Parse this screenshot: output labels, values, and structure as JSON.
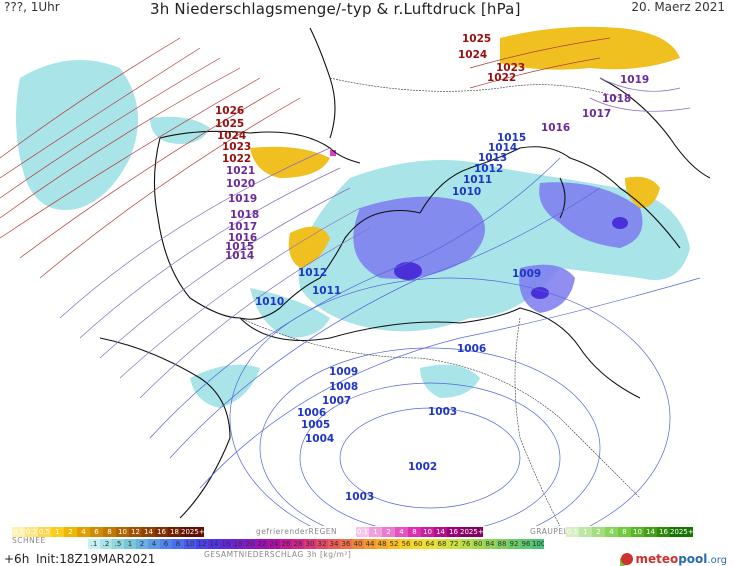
{
  "header": {
    "left": "???, 1Uhr",
    "title": "3h Niederschlagsmenge/-typ & r.Luftdruck [hPa]",
    "date": "20. Maerz 2021"
  },
  "isobar_labels": [
    {
      "value": "1025",
      "group": "hi"
    },
    {
      "value": "1024",
      "group": "hi"
    },
    {
      "value": "1023",
      "group": "hi"
    },
    {
      "value": "1022",
      "group": "hi"
    },
    {
      "value": "1026",
      "group": "hi"
    },
    {
      "value": "1025",
      "group": "hi"
    },
    {
      "value": "1024",
      "group": "hi"
    },
    {
      "value": "1023",
      "group": "hi"
    },
    {
      "value": "1022",
      "group": "hi"
    },
    {
      "value": "1021",
      "group": "mid"
    },
    {
      "value": "1020",
      "group": "mid"
    },
    {
      "value": "1019",
      "group": "mid"
    },
    {
      "value": "1018",
      "group": "mid"
    },
    {
      "value": "1017",
      "group": "mid"
    },
    {
      "value": "1016",
      "group": "mid"
    },
    {
      "value": "1015",
      "group": "mid"
    },
    {
      "value": "1014",
      "group": "mid"
    },
    {
      "value": "1019",
      "group": "mid"
    },
    {
      "value": "1018",
      "group": "mid"
    },
    {
      "value": "1017",
      "group": "mid"
    },
    {
      "value": "1016",
      "group": "mid"
    },
    {
      "value": "1015",
      "group": "lo"
    },
    {
      "value": "1014",
      "group": "lo"
    },
    {
      "value": "1013",
      "group": "lo"
    },
    {
      "value": "1012",
      "group": "lo"
    },
    {
      "value": "1011",
      "group": "lo"
    },
    {
      "value": "1010",
      "group": "lo"
    },
    {
      "value": "1012",
      "group": "lo"
    },
    {
      "value": "1011",
      "group": "lo"
    },
    {
      "value": "1010",
      "group": "lo"
    },
    {
      "value": "1009",
      "group": "lo"
    },
    {
      "value": "1006",
      "group": "lo"
    },
    {
      "value": "1009",
      "group": "lo"
    },
    {
      "value": "1008",
      "group": "lo"
    },
    {
      "value": "1007",
      "group": "lo"
    },
    {
      "value": "1006",
      "group": "lo"
    },
    {
      "value": "1005",
      "group": "lo"
    },
    {
      "value": "1004",
      "group": "lo"
    },
    {
      "value": "1003",
      "group": "lo"
    },
    {
      "value": "1002",
      "group": "lo"
    },
    {
      "value": "1003",
      "group": "lo"
    }
  ],
  "legend": {
    "schnee_label": "SCHNEE",
    "regen_label": "gefrierenderREGEN",
    "graupel_label": "GRAUPEL",
    "gesamt_label": "GESAMTNIEDERSCHLAG 3h [kg/m²]",
    "schnee_values": [
      "0.1",
      "0.2",
      "0.5",
      "1",
      "2",
      "4",
      "6",
      "8",
      "10",
      "12",
      "14",
      "16",
      "18",
      "2025+"
    ],
    "regen_values": [
      "0.1",
      "1",
      "2",
      "4",
      "8",
      "10",
      "14",
      "16",
      "2025+"
    ],
    "graupel_values": [
      "0.1",
      "1",
      "2",
      "4",
      "8",
      "10",
      "14",
      "16",
      "2025+"
    ],
    "gesamt_values": [
      ".1",
      ".2",
      ".5",
      "1",
      "2",
      "4",
      "6",
      "8",
      "10",
      "12",
      "14",
      "16",
      "18",
      "20",
      "22",
      "24",
      "26",
      "28",
      "30",
      "32",
      "34",
      "36",
      "40",
      "44",
      "48",
      "52",
      "56",
      "60",
      "64",
      "68",
      "72",
      "76",
      "80",
      "84",
      "88",
      "92",
      "96",
      "100"
    ],
    "run": "+6h",
    "init": "Init:18Z19MAR2021",
    "logo_a": "meteo",
    "logo_b": "pool",
    "logo_c": ".org"
  },
  "colors": {
    "isobar_high": "#9b0d0d",
    "isobar_mid": "#6a2a9a",
    "isobar_low": "#1e35c7",
    "snow": "#e8b800",
    "rain_light": "#9fe0e6",
    "rain_heavy": "#4a3cd9",
    "freezing_rain": "#e040c0",
    "graupel": "#7bc043"
  }
}
